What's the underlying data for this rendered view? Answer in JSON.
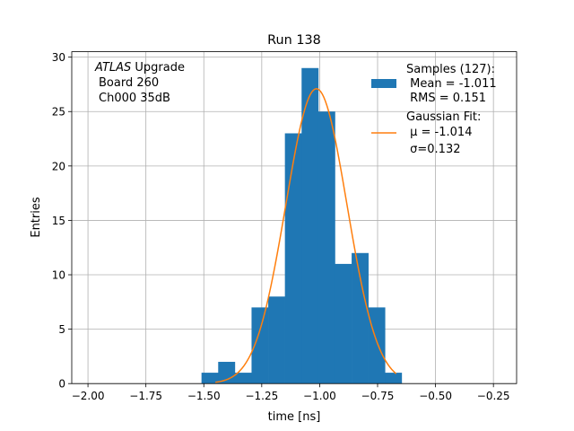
{
  "chart_data": {
    "type": "bar",
    "title": "Run 138",
    "xlabel": "time [ns]",
    "ylabel": "Entries",
    "xlim": [
      -2.07,
      -0.15
    ],
    "ylim": [
      0,
      30.5
    ],
    "grid": true,
    "legend_position": "top-right",
    "x_ticks": [
      -2.0,
      -1.75,
      -1.5,
      -1.25,
      -1.0,
      -0.75,
      -0.5,
      -0.25
    ],
    "x_tick_labels": [
      "−2.00",
      "−1.75",
      "−1.50",
      "−1.25",
      "−1.00",
      "−0.75",
      "−0.50",
      "−0.25"
    ],
    "y_ticks": [
      0,
      5,
      10,
      15,
      20,
      25,
      30
    ],
    "y_tick_labels": [
      "0",
      "5",
      "10",
      "15",
      "20",
      "25",
      "30"
    ],
    "histogram": {
      "name": "Samples (127):",
      "color": "#1f77b4",
      "bin_edges": [
        -1.51,
        -1.438,
        -1.366,
        -1.294,
        -1.222,
        -1.15,
        -1.078,
        -1.006,
        -0.934,
        -0.862,
        -0.79,
        -0.718,
        -0.646
      ],
      "counts": [
        1,
        2,
        1,
        7,
        8,
        23,
        29,
        25,
        11,
        12,
        7,
        1
      ]
    },
    "gaussian_fit": {
      "name": "Gaussian Fit:",
      "color": "#ff7f0e",
      "mu": -1.014,
      "sigma": 0.132,
      "amplitude": 27.1,
      "x_range": [
        -1.45,
        -0.67
      ]
    },
    "annotation": {
      "line1_italic": "ATLAS",
      "line1_rest": " Upgrade",
      "line2": "Board 260",
      "line3": "Ch000 35dB"
    },
    "legend": {
      "hist_lines": [
        "Samples (127):",
        " Mean = -1.011",
        " RMS = 0.151"
      ],
      "fit_lines": [
        "Gaussian Fit:",
        " μ = -1.014",
        " σ=0.132"
      ]
    }
  }
}
